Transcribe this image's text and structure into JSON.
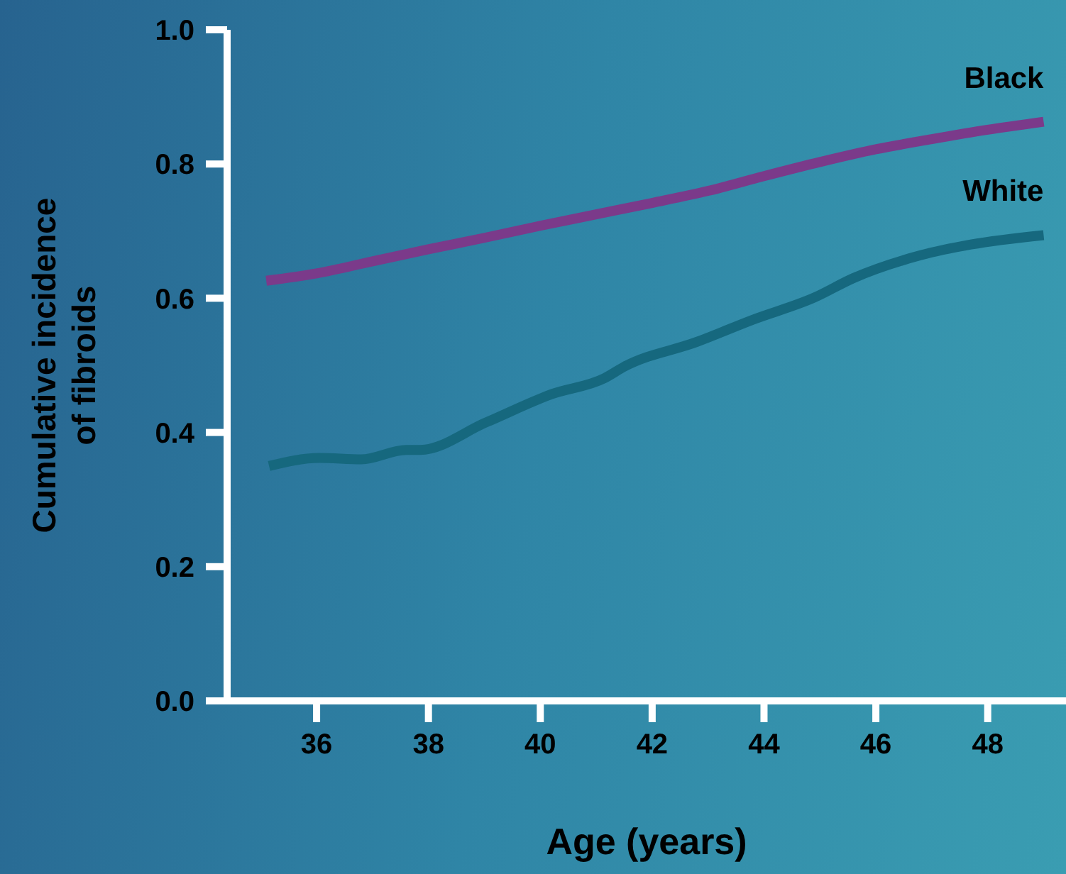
{
  "chart_data": {
    "type": "line",
    "xlabel": "Age (years)",
    "ylabel": "Cumulative incidence of fibroids",
    "xlim": [
      34.4,
      49.4
    ],
    "xticks": [
      36,
      38,
      40,
      42,
      44,
      46,
      48
    ],
    "ylim": [
      0,
      1
    ],
    "yticks": [
      {
        "value": 0,
        "label": "0.0"
      },
      0.2,
      0.4,
      0.6,
      0.8,
      {
        "value": 1,
        "label": "1.0"
      }
    ],
    "grid": false,
    "legend": false,
    "marker": "none",
    "line_style": "solid",
    "series": [
      {
        "name": "Black",
        "color": "#7b3a8a",
        "x": [
          35.1,
          36,
          37,
          38,
          39,
          40,
          41,
          42,
          43,
          44,
          45,
          46,
          47,
          48,
          49
        ],
        "values": [
          0.626,
          0.637,
          0.655,
          0.673,
          0.69,
          0.708,
          0.725,
          0.742,
          0.76,
          0.782,
          0.803,
          0.822,
          0.837,
          0.851,
          0.863
        ]
      },
      {
        "name": "White",
        "color": "#16687e",
        "x": [
          35.15,
          36.05,
          36.8,
          37.6,
          37.85,
          39.03,
          40.2,
          41.15,
          41.5,
          42.8,
          43.8,
          44.9,
          45.6,
          46.8,
          47.7,
          49.0
        ],
        "values": [
          0.35,
          0.362,
          0.36,
          0.374,
          0.374,
          0.415,
          0.457,
          0.481,
          0.498,
          0.535,
          0.568,
          0.601,
          0.63,
          0.664,
          0.68,
          0.694
        ]
      }
    ]
  }
}
